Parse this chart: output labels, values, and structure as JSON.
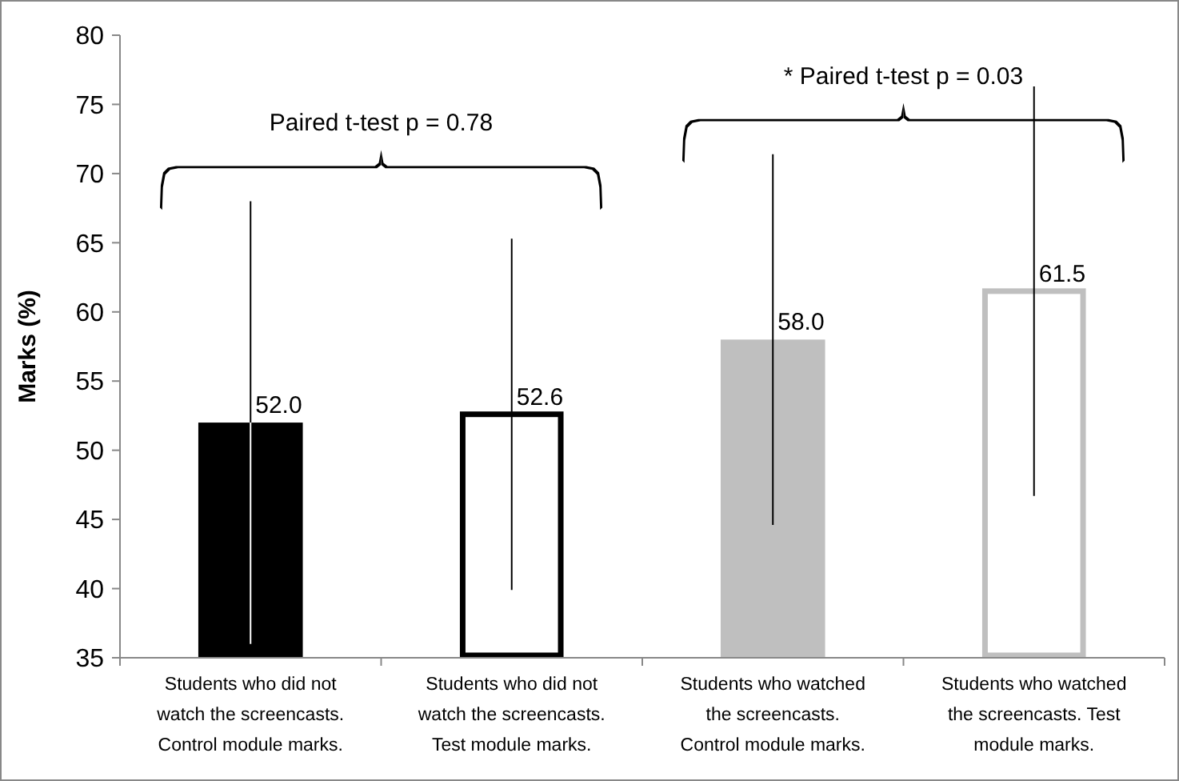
{
  "chart_data": {
    "type": "bar",
    "ylabel": "Marks (%)",
    "categories": [
      "Students who did not watch the screencasts. Control module marks.",
      "Students who did not watch the screencasts. Test module marks.",
      "Students who watched the screencasts. Control module marks.",
      "Students who watched the screencasts. Test module marks."
    ],
    "values": [
      52.0,
      52.6,
      58.0,
      61.5
    ],
    "colors": [
      "#000000",
      "#ffffff",
      "#bfbfbf",
      "#ffffff"
    ],
    "errors": [
      16,
      12.7,
      13.4,
      14.8
    ],
    "ylim": [
      35,
      80
    ],
    "yticks": [
      35,
      40,
      45,
      50,
      55,
      60,
      65,
      70,
      75,
      80
    ],
    "value_labels": [
      "52.0",
      "52.6",
      "58.0",
      "61.5"
    ],
    "grid": false,
    "annotations": [
      "Paired t-test p = 0.78",
      "* Paired t-test p = 0.03"
    ]
  }
}
